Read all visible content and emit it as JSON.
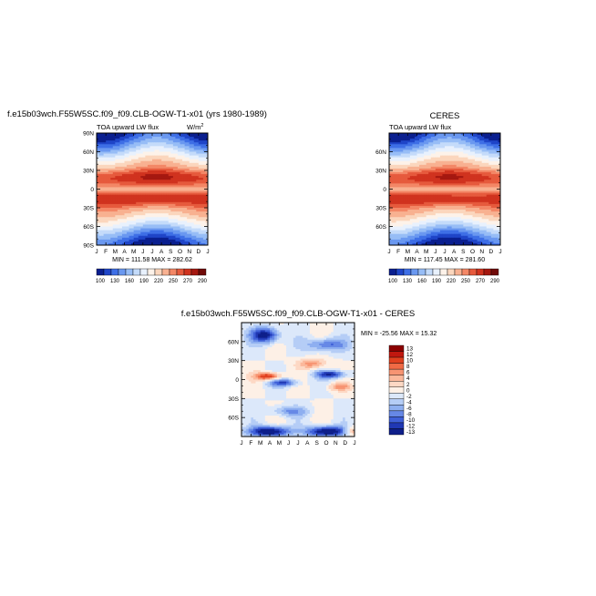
{
  "figure": {
    "case_title": "f.e15b03wch.F55W5SC.f09_f09.CLB-OGW-T1-x01 (yrs 1980-1989)",
    "obs_title": "CERES",
    "diff_title": "f.e15b03wch.F55W5SC.f09_f09.CLB-OGW-T1-x01  - CERES"
  },
  "chart_data": [
    {
      "type": "heatmap",
      "panel": "model",
      "title": "f.e15b03wch.F55W5SC.f09_f09.CLB-OGW-T1-x01 (yrs 1980-1989)",
      "subtitle_left": "TOA upward LW flux",
      "units": "W/m",
      "units_sup": "2",
      "x_ticks": [
        "J",
        "F",
        "M",
        "A",
        "M",
        "J",
        "J",
        "A",
        "S",
        "O",
        "N",
        "D",
        "J"
      ],
      "y_ticks": [
        "90N",
        "60N",
        "30N",
        "0",
        "30S",
        "60S",
        "90S"
      ],
      "ylim": [
        -90,
        90
      ],
      "stats": "MIN = 111.58  MAX = 282.62",
      "min": 111.58,
      "max": 282.62,
      "colorbar_labels": [
        "100",
        "130",
        "160",
        "190",
        "220",
        "250",
        "270",
        "290"
      ],
      "levels": [
        100,
        115,
        130,
        145,
        160,
        175,
        190,
        205,
        220,
        235,
        250,
        260,
        270,
        280,
        290
      ],
      "colors": [
        "#0a1f8f",
        "#1f45c8",
        "#3e6fe6",
        "#6a98f0",
        "#97bdf6",
        "#c4dbfa",
        "#e8f1fd",
        "#fdf2e9",
        "#fbd6bd",
        "#f8b191",
        "#f38766",
        "#e65a3d",
        "#d0331f",
        "#a51810",
        "#700a08"
      ]
    },
    {
      "type": "heatmap",
      "panel": "obs",
      "title": "CERES",
      "subtitle_left": "TOA upward LW flux",
      "x_ticks": [
        "J",
        "F",
        "M",
        "A",
        "M",
        "J",
        "J",
        "A",
        "S",
        "O",
        "N",
        "D",
        "J"
      ],
      "y_ticks": [
        "60N",
        "30N",
        "0",
        "30S",
        "60S"
      ],
      "ylim": [
        -90,
        90
      ],
      "stats": "MIN = 117.45  MAX = 281.60",
      "min": 117.45,
      "max": 281.6,
      "colorbar_labels": [
        "100",
        "130",
        "160",
        "190",
        "220",
        "250",
        "270",
        "290"
      ]
    },
    {
      "type": "heatmap",
      "panel": "difference",
      "title": "f.e15b03wch.F55W5SC.f09_f09.CLB-OGW-T1-x01  - CERES",
      "x_ticks": [
        "J",
        "F",
        "M",
        "A",
        "M",
        "J",
        "J",
        "A",
        "S",
        "O",
        "N",
        "D",
        "J"
      ],
      "y_ticks": [
        "60N",
        "30N",
        "0",
        "30S",
        "60S"
      ],
      "ylim": [
        -90,
        90
      ],
      "stats": "MIN = -25.56  MAX =  15.32",
      "min": -25.56,
      "max": 15.32,
      "colorbar_labels": [
        "13",
        "12",
        "10",
        "8",
        "6",
        "4",
        "2",
        "0",
        "-2",
        "-4",
        "-6",
        "-8",
        "-10",
        "-12",
        "-13"
      ],
      "colors": [
        "#8b0000",
        "#c0180f",
        "#e0401f",
        "#f06a45",
        "#f79472",
        "#fbb89b",
        "#fdd8c4",
        "#fdf0e6",
        "#dce8fa",
        "#b5cdf6",
        "#8eaff0",
        "#6688e6",
        "#3f60d8",
        "#2038b4",
        "#0e1f8a"
      ]
    }
  ]
}
